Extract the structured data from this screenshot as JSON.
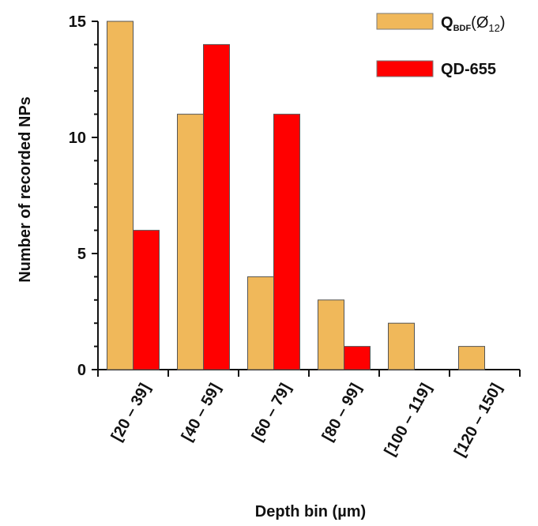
{
  "chart_data": {
    "type": "bar",
    "categories": [
      "[20 – 39]",
      "[40 – 59]",
      "[60 – 79]",
      "[80 – 99]",
      "[100 – 119]",
      "[120 – 150]"
    ],
    "series": [
      {
        "name": "Q_BDF(Ø_12)",
        "label_main": "Q",
        "label_sub": "BDF",
        "label_paren": "(Ø",
        "label_paren_sub": "12",
        "label_paren_close": ")",
        "color": "#f0b85a",
        "values": [
          15,
          11,
          4,
          3,
          2,
          1
        ]
      },
      {
        "name": "QD-655",
        "color": "#ff0000",
        "values": [
          6,
          14,
          11,
          1,
          0,
          0
        ]
      }
    ],
    "xlabel": "Depth bin (µm)",
    "ylabel": "Number of recorded NPs",
    "ylim": [
      0,
      15
    ],
    "yticks": [
      0,
      5,
      10,
      15
    ],
    "legend_position": "top-right",
    "grid": false,
    "title": ""
  }
}
